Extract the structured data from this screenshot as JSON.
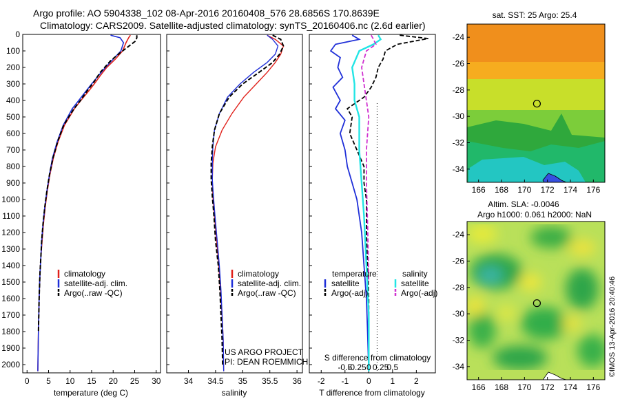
{
  "header": {
    "line1": "Argo profile: AO 5904338_102 08-Apr-2016 20160408_576 28.6856S 170.8639E",
    "line2": "Climatology: CARS2009. Satellite-adjusted climatology: synTS_20160406.nc (2.6d earlier)"
  },
  "credit": {
    "line1": "US ARGO PROJECT",
    "line2": "PI: DEAN ROEMMICH"
  },
  "stamp": "©IMOS 13-Apr-2016 20:40:46",
  "colors": {
    "climatology": "#e0201a",
    "satellite": "#1f2fd8",
    "argo": "#000000",
    "s_satellite": "#22e5e5",
    "s_argo": "#d030d0"
  },
  "chart_data": [
    {
      "type": "line",
      "id": "temperature",
      "xlabel": "temperature (deg C)",
      "ylabel": "",
      "xlim": [
        -1,
        31
      ],
      "ylim": [
        2050,
        0
      ],
      "xticks": [
        0,
        5,
        10,
        15,
        20,
        25,
        30
      ],
      "yticks": [
        0,
        100,
        200,
        300,
        400,
        500,
        600,
        700,
        800,
        900,
        1000,
        1100,
        1200,
        1300,
        1400,
        1500,
        1600,
        1700,
        1800,
        1900,
        2000
      ],
      "legend": [
        "climatology",
        "satellite-adj. clim.",
        "Argo(..raw -QC)"
      ],
      "series": [
        {
          "name": "climatology",
          "x": [
            24,
            23.6,
            23,
            22.2,
            20.5,
            18.5,
            17,
            15.6,
            14.1,
            12.5,
            11,
            8.7,
            7.2,
            6.1,
            5.3,
            4.7,
            4.2,
            3.8,
            3.5,
            3.2,
            3.0,
            2.8,
            2.65,
            2.5
          ],
          "y": [
            5,
            20,
            50,
            100,
            150,
            200,
            250,
            300,
            350,
            400,
            450,
            550,
            650,
            750,
            850,
            950,
            1050,
            1150,
            1250,
            1350,
            1450,
            1600,
            1800,
            2040
          ]
        },
        {
          "name": "satellite-adj. clim.",
          "x": [
            19.4,
            21.6,
            22.4,
            21.8,
            20.0,
            18.2,
            16.6,
            15.0,
            13.5,
            12.0,
            10.5,
            8.4,
            7.0,
            5.9,
            5.2,
            4.6,
            4.1,
            3.7,
            3.4,
            3.2,
            3.0,
            2.8,
            2.65,
            2.5
          ],
          "y": [
            5,
            20,
            50,
            100,
            150,
            200,
            250,
            300,
            350,
            400,
            450,
            550,
            650,
            750,
            850,
            950,
            1050,
            1150,
            1250,
            1350,
            1450,
            1600,
            1800,
            2040
          ]
        },
        {
          "name": "Argo(..raw -QC)",
          "x": [
            25.5,
            25.5,
            25.2,
            23.2,
            21.2,
            19.4,
            17.0,
            15.5,
            14.0,
            12.4,
            10.9,
            8.5,
            7.1,
            6.0,
            5.2,
            4.6,
            4.1,
            3.7,
            3.4,
            3.2,
            3.0,
            2.8,
            2.65
          ],
          "y": [
            5,
            20,
            40,
            80,
            120,
            160,
            230,
            290,
            340,
            400,
            450,
            550,
            650,
            750,
            850,
            950,
            1050,
            1150,
            1250,
            1350,
            1450,
            1600,
            1800
          ]
        }
      ]
    },
    {
      "type": "line",
      "id": "salinity",
      "xlabel": "salinity",
      "ylabel": "",
      "xlim": [
        33.6,
        36.1
      ],
      "ylim": [
        2050,
        0
      ],
      "xticks": [
        34,
        34.5,
        35,
        35.5,
        36
      ],
      "legend": [
        "climatology",
        "satellite-adj. clim.",
        "Argo(..raw -QC)"
      ],
      "series": [
        {
          "name": "climatology",
          "x": [
            35.45,
            35.6,
            35.75,
            35.7,
            35.6,
            35.45,
            35.25,
            35.02,
            34.8,
            34.62,
            34.5,
            34.45,
            34.44,
            34.45,
            34.48,
            34.52,
            34.56,
            34.59,
            34.62,
            34.64,
            34.65
          ],
          "y": [
            5,
            30,
            70,
            120,
            170,
            230,
            300,
            380,
            480,
            580,
            680,
            780,
            880,
            980,
            1100,
            1250,
            1400,
            1550,
            1700,
            1850,
            2040
          ]
        },
        {
          "name": "satellite-adj. clim.",
          "x": [
            35.45,
            35.55,
            35.65,
            35.6,
            35.45,
            35.2,
            34.95,
            34.72,
            34.57,
            34.48,
            34.45,
            34.44,
            34.44,
            34.46,
            34.49,
            34.53,
            34.57,
            34.6,
            34.62,
            34.64,
            34.65
          ],
          "y": [
            5,
            30,
            70,
            120,
            170,
            230,
            300,
            380,
            480,
            580,
            680,
            780,
            880,
            980,
            1100,
            1250,
            1400,
            1550,
            1700,
            1850,
            2040
          ]
        },
        {
          "name": "Argo(..raw -QC)",
          "x": [
            35.55,
            35.7,
            35.75,
            35.68,
            35.55,
            35.3,
            35.0,
            34.75,
            34.57,
            34.48,
            34.44,
            34.42,
            34.42,
            34.44,
            34.47,
            34.5,
            34.55,
            34.58,
            34.6,
            34.62,
            34.63
          ],
          "y": [
            5,
            30,
            70,
            120,
            170,
            230,
            300,
            380,
            480,
            580,
            680,
            780,
            880,
            980,
            1100,
            1250,
            1400,
            1550,
            1700,
            1850,
            2000
          ]
        }
      ]
    },
    {
      "type": "line",
      "id": "difference",
      "xlabel": "T difference from climatology",
      "x2label": "S difference from climatology",
      "ylabel": "",
      "xlim": [
        -2.5,
        2.8
      ],
      "ylim": [
        2050,
        0
      ],
      "xticks": [
        -2,
        -1,
        0,
        1,
        2
      ],
      "x2ticks": [
        -0.5,
        -0.25,
        0,
        0.25,
        0.5
      ],
      "legend_groups": [
        {
          "title": "temperature",
          "items": [
            "satellite",
            "Argo(-adj)"
          ]
        },
        {
          "title": "salinity",
          "items": [
            "satellite",
            "Argo(-adj)"
          ]
        }
      ],
      "series": [
        {
          "name": "temperature satellite",
          "x": [
            -0.7,
            -0.4,
            -1.4,
            -1.6,
            -1.2,
            -1.3,
            -1.1,
            -1.5,
            -1.2,
            -1.4,
            -1.0,
            -1.2,
            -1.0,
            -0.9,
            -0.7,
            -0.5,
            -0.3,
            -0.2,
            -0.1,
            -0.05,
            0
          ],
          "y": [
            5,
            30,
            60,
            100,
            140,
            200,
            260,
            320,
            400,
            450,
            520,
            600,
            700,
            800,
            900,
            1000,
            1200,
            1400,
            1600,
            1800,
            2040
          ]
        },
        {
          "name": "temperature Argo(-adj)",
          "x": [
            1.3,
            2.5,
            1.2,
            0.7,
            0.6,
            0.4,
            0.3,
            0.1,
            -0.2,
            -0.9,
            -0.7,
            -0.8,
            -0.5,
            -0.2,
            -0.2,
            -0.1,
            -0.1,
            -0.05,
            0,
            0
          ],
          "y": [
            5,
            25,
            60,
            100,
            150,
            200,
            260,
            320,
            380,
            450,
            500,
            600,
            700,
            800,
            900,
            1000,
            1200,
            1400,
            1600,
            1800
          ]
        },
        {
          "name": "salinity satellite",
          "x": [
            0.2,
            0.25,
            0.1,
            -0.2,
            -0.35,
            -0.3,
            -0.3,
            -0.2,
            -0.2,
            -0.15,
            -0.1,
            -0.05,
            0,
            0
          ],
          "y": [
            5,
            30,
            60,
            100,
            200,
            300,
            400,
            500,
            700,
            900,
            1100,
            1400,
            1700,
            2040
          ]
        },
        {
          "name": "salinity Argo(-adj)",
          "x": [
            0.05,
            0.1,
            0.15,
            -0.05,
            -0.15,
            -0.1,
            -0.05,
            0.0,
            -0.05,
            -0.05,
            -0.02,
            0
          ],
          "y": [
            5,
            30,
            60,
            100,
            200,
            300,
            400,
            500,
            700,
            900,
            1200,
            1500
          ]
        }
      ]
    },
    {
      "type": "heatmap",
      "id": "sst-map",
      "title": "sat. SST: 25 Argo: 25.4",
      "xticks": [
        166,
        168,
        170,
        172,
        174,
        176
      ],
      "yticks": [
        -24,
        -26,
        -28,
        -30,
        -32,
        -34
      ],
      "xlim": [
        165,
        177
      ],
      "ylim": [
        -35,
        -23
      ],
      "marker": {
        "lon": 170.86,
        "lat": -28.69
      }
    },
    {
      "type": "heatmap",
      "id": "sla-map",
      "title": "Altim. SLA: -0.0046",
      "subtitle": "Argo h1000: 0.061 h2000: NaN",
      "xticks": [
        166,
        168,
        170,
        172,
        174,
        176
      ],
      "yticks": [
        -24,
        -26,
        -28,
        -30,
        -32,
        -34
      ],
      "xlim": [
        165,
        177
      ],
      "ylim": [
        -35,
        -23
      ],
      "marker": {
        "lon": 170.86,
        "lat": -28.69
      }
    }
  ]
}
